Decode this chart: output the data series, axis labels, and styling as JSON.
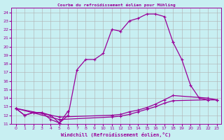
{
  "title": "Courbe du refroidissement éolien pour Mühling",
  "xlabel": "Windchill (Refroidissement éolien,°C)",
  "bg_color": "#c8eff2",
  "grid_color": "#b0b0b0",
  "line_color": "#990099",
  "xlim": [
    -0.5,
    23.5
  ],
  "ylim": [
    11,
    24.5
  ],
  "xticks": [
    0,
    1,
    2,
    3,
    4,
    5,
    6,
    7,
    8,
    9,
    10,
    11,
    12,
    13,
    14,
    15,
    16,
    17,
    18,
    19,
    20,
    21,
    22,
    23
  ],
  "yticks": [
    11,
    12,
    13,
    14,
    15,
    16,
    17,
    18,
    19,
    20,
    21,
    22,
    23,
    24
  ],
  "curve1_x": [
    0,
    1,
    2,
    3,
    4,
    5,
    6,
    7,
    8,
    9,
    10,
    11,
    12,
    13,
    14,
    15,
    16,
    17,
    18
  ],
  "curve1_y": [
    12.8,
    12.0,
    12.3,
    12.3,
    12.0,
    11.1,
    12.0,
    17.3,
    18.5,
    18.5,
    19.2,
    22.0,
    21.8,
    23.0,
    23.3,
    23.8,
    23.8,
    23.5,
    20.5
  ],
  "curve2a_x": [
    0,
    1,
    2,
    3,
    4,
    5,
    6
  ],
  "curve2a_y": [
    12.8,
    12.0,
    12.3,
    12.3,
    11.5,
    11.1,
    12.5
  ],
  "curve2b_x": [
    18,
    19,
    20,
    21,
    22,
    23
  ],
  "curve2b_y": [
    20.5,
    18.5,
    15.5,
    14.0,
    13.8,
    13.8
  ],
  "curve3_x": [
    0,
    5,
    11,
    12,
    13,
    14,
    15,
    16,
    17,
    18,
    22,
    23
  ],
  "curve3_y": [
    12.8,
    11.8,
    12.0,
    12.1,
    12.4,
    12.6,
    12.9,
    13.3,
    13.8,
    14.3,
    14.0,
    13.8
  ],
  "curve4_x": [
    0,
    5,
    11,
    12,
    13,
    14,
    15,
    16,
    17,
    18,
    22,
    23
  ],
  "curve4_y": [
    12.8,
    11.5,
    11.8,
    11.9,
    12.1,
    12.4,
    12.7,
    13.0,
    13.4,
    13.7,
    13.8,
    13.8
  ]
}
